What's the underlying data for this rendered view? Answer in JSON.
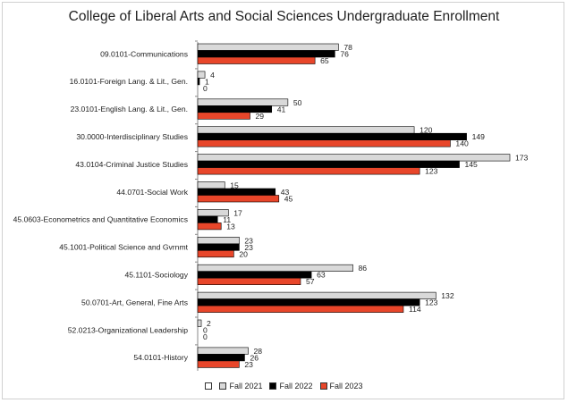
{
  "chart_data": {
    "type": "bar",
    "orientation": "horizontal",
    "title": "College of Liberal Arts and Social Sciences Undergraduate Enrollment",
    "xlabel": "",
    "ylabel": "",
    "xlim": [
      0,
      175
    ],
    "grid": false,
    "legend_position": "bottom",
    "categories": [
      "09.0101-Communications",
      "16.0101-Foreign Lang. & Lit., Gen.",
      "23.0101-English Lang. & Lit., Gen.",
      "30.0000-Interdisciplinary Studies",
      "43.0104-Criminal Justice Studies",
      "44.0701-Social Work",
      "45.0603-Econometrics and Quantitative Economics",
      "45.1001-Political Science and Gvrnmt",
      "45.1101-Sociology",
      "50.0701-Art, General, Fine Arts",
      "52.0213-Organizational Leadership",
      "54.0101-History"
    ],
    "series": [
      {
        "name": "Fall 2021",
        "color": "#d9d9d9",
        "values": [
          78,
          4,
          50,
          120,
          173,
          15,
          17,
          23,
          86,
          132,
          2,
          28
        ]
      },
      {
        "name": "Fall 2022",
        "color": "#000000",
        "values": [
          76,
          1,
          41,
          149,
          145,
          43,
          11,
          23,
          63,
          123,
          0,
          26
        ]
      },
      {
        "name": "Fall 2023",
        "color": "#e8462a",
        "values": [
          65,
          0,
          29,
          140,
          123,
          45,
          13,
          20,
          57,
          114,
          0,
          23
        ]
      }
    ]
  }
}
